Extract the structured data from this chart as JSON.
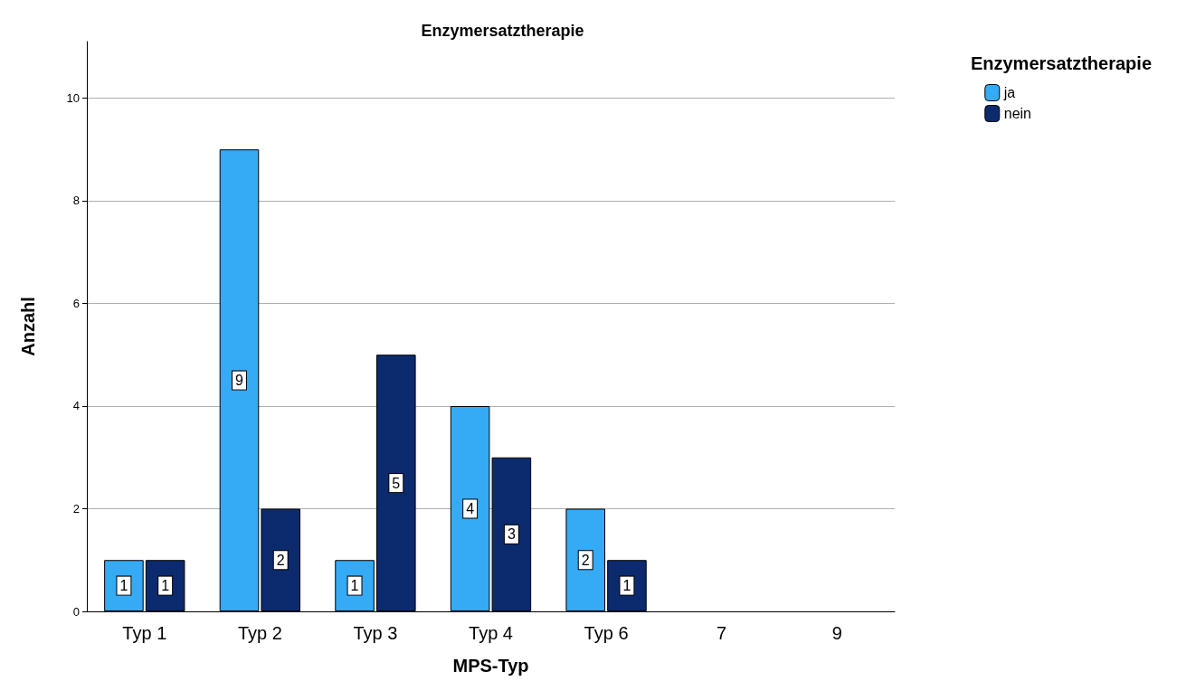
{
  "chart_data": {
    "type": "bar",
    "title": "Enzymersatztherapie",
    "xlabel": "MPS-Typ",
    "ylabel": "Anzahl",
    "legend_title": "Enzymersatztherapie",
    "categories": [
      "Typ 1",
      "Typ 2",
      "Typ 3",
      "Typ 4",
      "Typ 6",
      "7",
      "9"
    ],
    "series": [
      {
        "name": "ja",
        "color": "#35aaf5",
        "values": [
          1,
          9,
          1,
          4,
          2,
          null,
          null
        ]
      },
      {
        "name": "nein",
        "color": "#0c2a6e",
        "values": [
          1,
          2,
          5,
          3,
          1,
          null,
          null
        ]
      }
    ],
    "ylim": [
      0,
      11.1
    ],
    "yticks": [
      0,
      2,
      4,
      6,
      8,
      10
    ],
    "grid": "y",
    "legend": "top right",
    "data_labels": true
  }
}
